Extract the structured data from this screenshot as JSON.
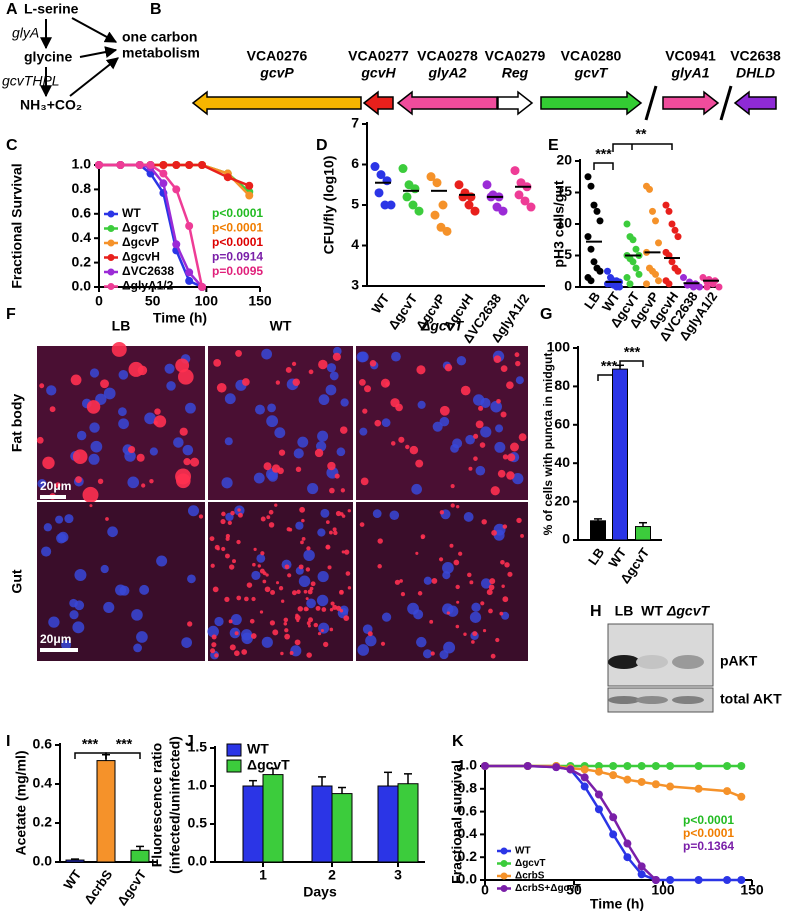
{
  "pathway": {
    "panel": "A",
    "nodes": [
      "L-serine",
      "glycine",
      "NH₃+CO₂"
    ],
    "enzymes": [
      "glyA",
      "gcvTHPL"
    ],
    "target": [
      "one carbon",
      "metabolism"
    ]
  },
  "operon": {
    "panel": "B",
    "genes": [
      {
        "id": "VCA0276",
        "name": "gcvP",
        "color": "#f7b500",
        "direction": "left"
      },
      {
        "id": "VCA0277",
        "name": "gcvH",
        "color": "#e8201c",
        "direction": "left"
      },
      {
        "id": "VCA0278",
        "name": "glyA2",
        "color": "#f04c9c",
        "direction": "left"
      },
      {
        "id": "VCA0279",
        "name": "Reg",
        "color": "#ffffff",
        "direction": "right"
      },
      {
        "id": "VCA0280",
        "name": "gcvT",
        "color": "#33cc33",
        "direction": "right"
      },
      {
        "id": "VC0941",
        "name": "glyA1",
        "color": "#f04c9c",
        "direction": "right"
      },
      {
        "id": "VC2638",
        "name": "DHLD",
        "color": "#8e2ad6",
        "direction": "left"
      }
    ]
  },
  "micrographs": {
    "panel": "F",
    "columns": [
      "LB",
      "WT",
      "ΔgcvT"
    ],
    "rows": [
      "Fat body",
      "Gut"
    ],
    "scale_bars": [
      "20μm",
      "20μm"
    ]
  },
  "blot": {
    "panel": "H",
    "lanes": [
      "LB",
      "WT",
      "ΔgcvT"
    ],
    "bands": [
      "pAKT",
      "total AKT"
    ]
  },
  "chart_data": [
    {
      "panel": "C",
      "type": "line",
      "x_label": "Time (h)",
      "y_label": "Fractional Survival",
      "x": [
        0,
        20,
        38,
        48,
        60,
        72,
        84,
        96,
        120,
        140
      ],
      "xlim": [
        0,
        150
      ],
      "xticks": [
        0,
        50,
        100,
        150
      ],
      "ylim": [
        0,
        1
      ],
      "yticks": [
        {
          "value": 0,
          "label": "0.0"
        },
        {
          "value": 0.2,
          "label": "0.2"
        },
        {
          "value": 0.4,
          "label": "0.4"
        },
        {
          "value": 0.6,
          "label": "0.6"
        },
        {
          "value": 0.8,
          "label": "0.8"
        },
        {
          "value": 1,
          "label": "1.0"
        }
      ],
      "legend": "lower left",
      "series": [
        {
          "name": "WT",
          "color": "#2b35e6",
          "values": [
            1,
            1,
            1,
            0.93,
            0.77,
            0.3,
            0.05,
            0,
            null,
            null
          ]
        },
        {
          "name": "ΔgcvT",
          "color": "#3ccc3c",
          "values": [
            1,
            1,
            1,
            1,
            1,
            1,
            1,
            1,
            0.93,
            0.78
          ]
        },
        {
          "name": "ΔgcvP",
          "color": "#f5922a",
          "values": [
            1,
            1,
            1,
            1,
            1,
            1,
            1,
            1,
            0.93,
            0.75
          ]
        },
        {
          "name": "ΔgcvH",
          "color": "#e8201c",
          "values": [
            1,
            1,
            1,
            1,
            1,
            1,
            1,
            1,
            0.9,
            0.83
          ]
        },
        {
          "name": "ΔVC2638",
          "color": "#9b2bd6",
          "values": [
            1,
            1,
            1,
            0.98,
            0.85,
            0.35,
            0.12,
            0,
            null,
            null
          ]
        },
        {
          "name": "ΔglyA1/2",
          "color": "#ee3c96",
          "values": [
            1,
            1,
            1,
            1,
            0.93,
            0.8,
            0.5,
            0,
            null,
            null
          ]
        }
      ],
      "annotations": [
        {
          "text": "p<0.0001",
          "color": "#22bb22"
        },
        {
          "text": "p<0.0001",
          "color": "#f07d00"
        },
        {
          "text": "p<0.0001",
          "color": "#dd0000"
        },
        {
          "text": "p=0.0914",
          "color": "#7a1fa8"
        },
        {
          "text": "p=0.0095",
          "color": "#e0207a"
        }
      ]
    },
    {
      "panel": "D",
      "type": "dot",
      "y_label": "CFU/fly (log10)",
      "categories": [
        "WT",
        "ΔgcvT",
        "ΔgcvP",
        "ΔgcvH",
        "ΔVC2638",
        "ΔglyA1/2"
      ],
      "colors": [
        "#2b35e6",
        "#3ccc3c",
        "#f5922a",
        "#e8201c",
        "#9b2bd6",
        "#ee3c96"
      ],
      "values": [
        [
          5.95,
          5.75,
          5.6,
          5.3,
          5.0,
          5.0
        ],
        [
          5.9,
          5.5,
          5.4,
          5.2,
          5.0,
          4.85
        ],
        [
          5.7,
          5.55,
          5.0,
          4.75,
          4.45,
          4.35
        ],
        [
          5.5,
          5.3,
          5.2,
          5.2,
          5.0,
          4.85
        ],
        [
          5.5,
          5.25,
          5.2,
          5.2,
          4.95,
          4.85
        ],
        [
          5.85,
          5.55,
          5.45,
          5.25,
          5.1,
          4.95
        ]
      ],
      "means": [
        5.55,
        5.35,
        5.35,
        5.25,
        5.2,
        5.45
      ],
      "ylim": [
        3,
        7
      ],
      "yticks": [
        3,
        4,
        5,
        6,
        7
      ]
    },
    {
      "panel": "E",
      "type": "dot",
      "y_label": "pH3 cells/gut",
      "categories": [
        "LB",
        "WT",
        "ΔgcvT",
        "ΔgcvP",
        "ΔgcvH",
        "ΔVC2638",
        "ΔglyA1/2"
      ],
      "colors": [
        "#000000",
        "#2b35e6",
        "#3ccc3c",
        "#f5922a",
        "#e8201c",
        "#9b2bd6",
        "#ee3c96"
      ],
      "values": [
        [
          17.5,
          16,
          13,
          12,
          10.5,
          8,
          6,
          4,
          3,
          2.5,
          1.5,
          1
        ],
        [
          2.5,
          1.5,
          1,
          1,
          0.8,
          0.5,
          0.5,
          0.3,
          0,
          0
        ],
        [
          10,
          8,
          7.5,
          6,
          5,
          5,
          4.5,
          4,
          3,
          2,
          1.5,
          0.5
        ],
        [
          16,
          15.5,
          12,
          10.5,
          7,
          5.5,
          3,
          2.5,
          2,
          1,
          0.5
        ],
        [
          13,
          12,
          10,
          9,
          8,
          5.5,
          5,
          4,
          3,
          2.5,
          1,
          0.5
        ],
        [
          1.5,
          0.8,
          0.5,
          0.3,
          0,
          0
        ],
        [
          1.5,
          1.2,
          1,
          0.8,
          0.5,
          0,
          0
        ]
      ],
      "means": [
        7.2,
        0.8,
        5.0,
        5.5,
        4.6,
        0.6,
        1.0
      ],
      "ylim": [
        0,
        20
      ],
      "yticks": [
        0,
        5,
        10,
        15,
        20
      ],
      "significance": [
        "***",
        "**"
      ]
    },
    {
      "panel": "G",
      "type": "bar",
      "y_label": "% of cells with puncta in midgut",
      "categories": [
        "LB",
        "WT",
        "ΔgcvT"
      ],
      "colors": [
        "#000000",
        "#2b35e6",
        "#3ccc3c"
      ],
      "values": [
        10,
        89,
        7
      ],
      "errors": [
        1,
        2,
        2
      ],
      "ylim": [
        0,
        100
      ],
      "yticks": [
        0,
        20,
        40,
        60,
        80,
        100
      ],
      "significance": [
        "***",
        "***"
      ]
    },
    {
      "panel": "I",
      "type": "bar",
      "y_label": "Acetate (mg/ml)",
      "categories": [
        "WT",
        "ΔcrbS",
        "ΔgcvT"
      ],
      "colors": [
        "#2b35e6",
        "#f5922a",
        "#3ccc3c"
      ],
      "values": [
        0.01,
        0.52,
        0.06
      ],
      "errors": [
        0.005,
        0.03,
        0.02
      ],
      "ylim": [
        0,
        0.6
      ],
      "yticks": [
        {
          "value": 0,
          "label": "0.0"
        },
        {
          "value": 0.2,
          "label": "0.2"
        },
        {
          "value": 0.4,
          "label": "0.4"
        },
        {
          "value": 0.6,
          "label": "0.6"
        }
      ],
      "significance": [
        "***",
        "***"
      ]
    },
    {
      "panel": "J",
      "type": "grouped_bar",
      "x_label": "Days",
      "y_label": [
        "Fluorescence ratio",
        "(infected/uninfected)"
      ],
      "categories": [
        "1",
        "2",
        "3"
      ],
      "legend": "upper left",
      "series": [
        {
          "name": "WT",
          "color": "#2b35e6",
          "values": [
            1.0,
            1.0,
            1.0
          ],
          "errors": [
            0.07,
            0.12,
            0.18
          ]
        },
        {
          "name": "ΔgcvT",
          "color": "#3ccc3c",
          "values": [
            1.15,
            0.9,
            1.03
          ],
          "errors": [
            0.08,
            0.08,
            0.13
          ]
        }
      ],
      "ylim": [
        0,
        1.5
      ],
      "yticks": [
        {
          "value": 0,
          "label": "0.0"
        },
        {
          "value": 0.5,
          "label": "0.5"
        },
        {
          "value": 1,
          "label": "1.0"
        },
        {
          "value": 1.5,
          "label": "1.5"
        }
      ]
    },
    {
      "panel": "K",
      "type": "line",
      "x_label": "Time (h)",
      "y_label": "Fractional survival",
      "x": [
        0,
        24,
        40,
        48,
        56,
        64,
        72,
        80,
        88,
        96,
        104,
        120,
        136,
        144
      ],
      "xlim": [
        0,
        150
      ],
      "xticks": [
        0,
        50,
        100,
        150
      ],
      "ylim": [
        0,
        1
      ],
      "yticks": [
        {
          "value": 0,
          "label": "0.0"
        },
        {
          "value": 0.2,
          "label": "0.2"
        },
        {
          "value": 0.4,
          "label": "0.4"
        },
        {
          "value": 0.6,
          "label": "0.6"
        },
        {
          "value": 0.8,
          "label": "0.8"
        },
        {
          "value": 1,
          "label": "1.0"
        }
      ],
      "legend": "lower left",
      "series": [
        {
          "name": "WT",
          "color": "#2b35e6",
          "values": [
            1,
            1,
            0.99,
            0.97,
            0.82,
            0.62,
            0.4,
            0.2,
            0.05,
            0,
            0,
            0,
            0,
            0
          ]
        },
        {
          "name": "ΔgcvT",
          "color": "#3ccc3c",
          "values": [
            1,
            1,
            1,
            1,
            1,
            1,
            1,
            1,
            1,
            1,
            1,
            1,
            1,
            1
          ]
        },
        {
          "name": "ΔcrbS",
          "color": "#f5922a",
          "values": [
            1,
            1,
            1,
            0.98,
            0.97,
            0.95,
            0.92,
            0.88,
            0.86,
            0.84,
            0.82,
            0.8,
            0.78,
            0.73
          ]
        },
        {
          "name": "ΔcrbS+ΔgcvT",
          "color": "#7a1fa8",
          "values": [
            1,
            1,
            0.99,
            0.97,
            0.9,
            0.75,
            0.55,
            0.32,
            0.12,
            0,
            null,
            null,
            null,
            null
          ]
        }
      ],
      "annotations": [
        {
          "text": "p<0.0001",
          "color": "#22bb22"
        },
        {
          "text": "p<0.0001",
          "color": "#f07d00"
        },
        {
          "text": "p=0.1364",
          "color": "#7a1fa8"
        }
      ]
    }
  ]
}
